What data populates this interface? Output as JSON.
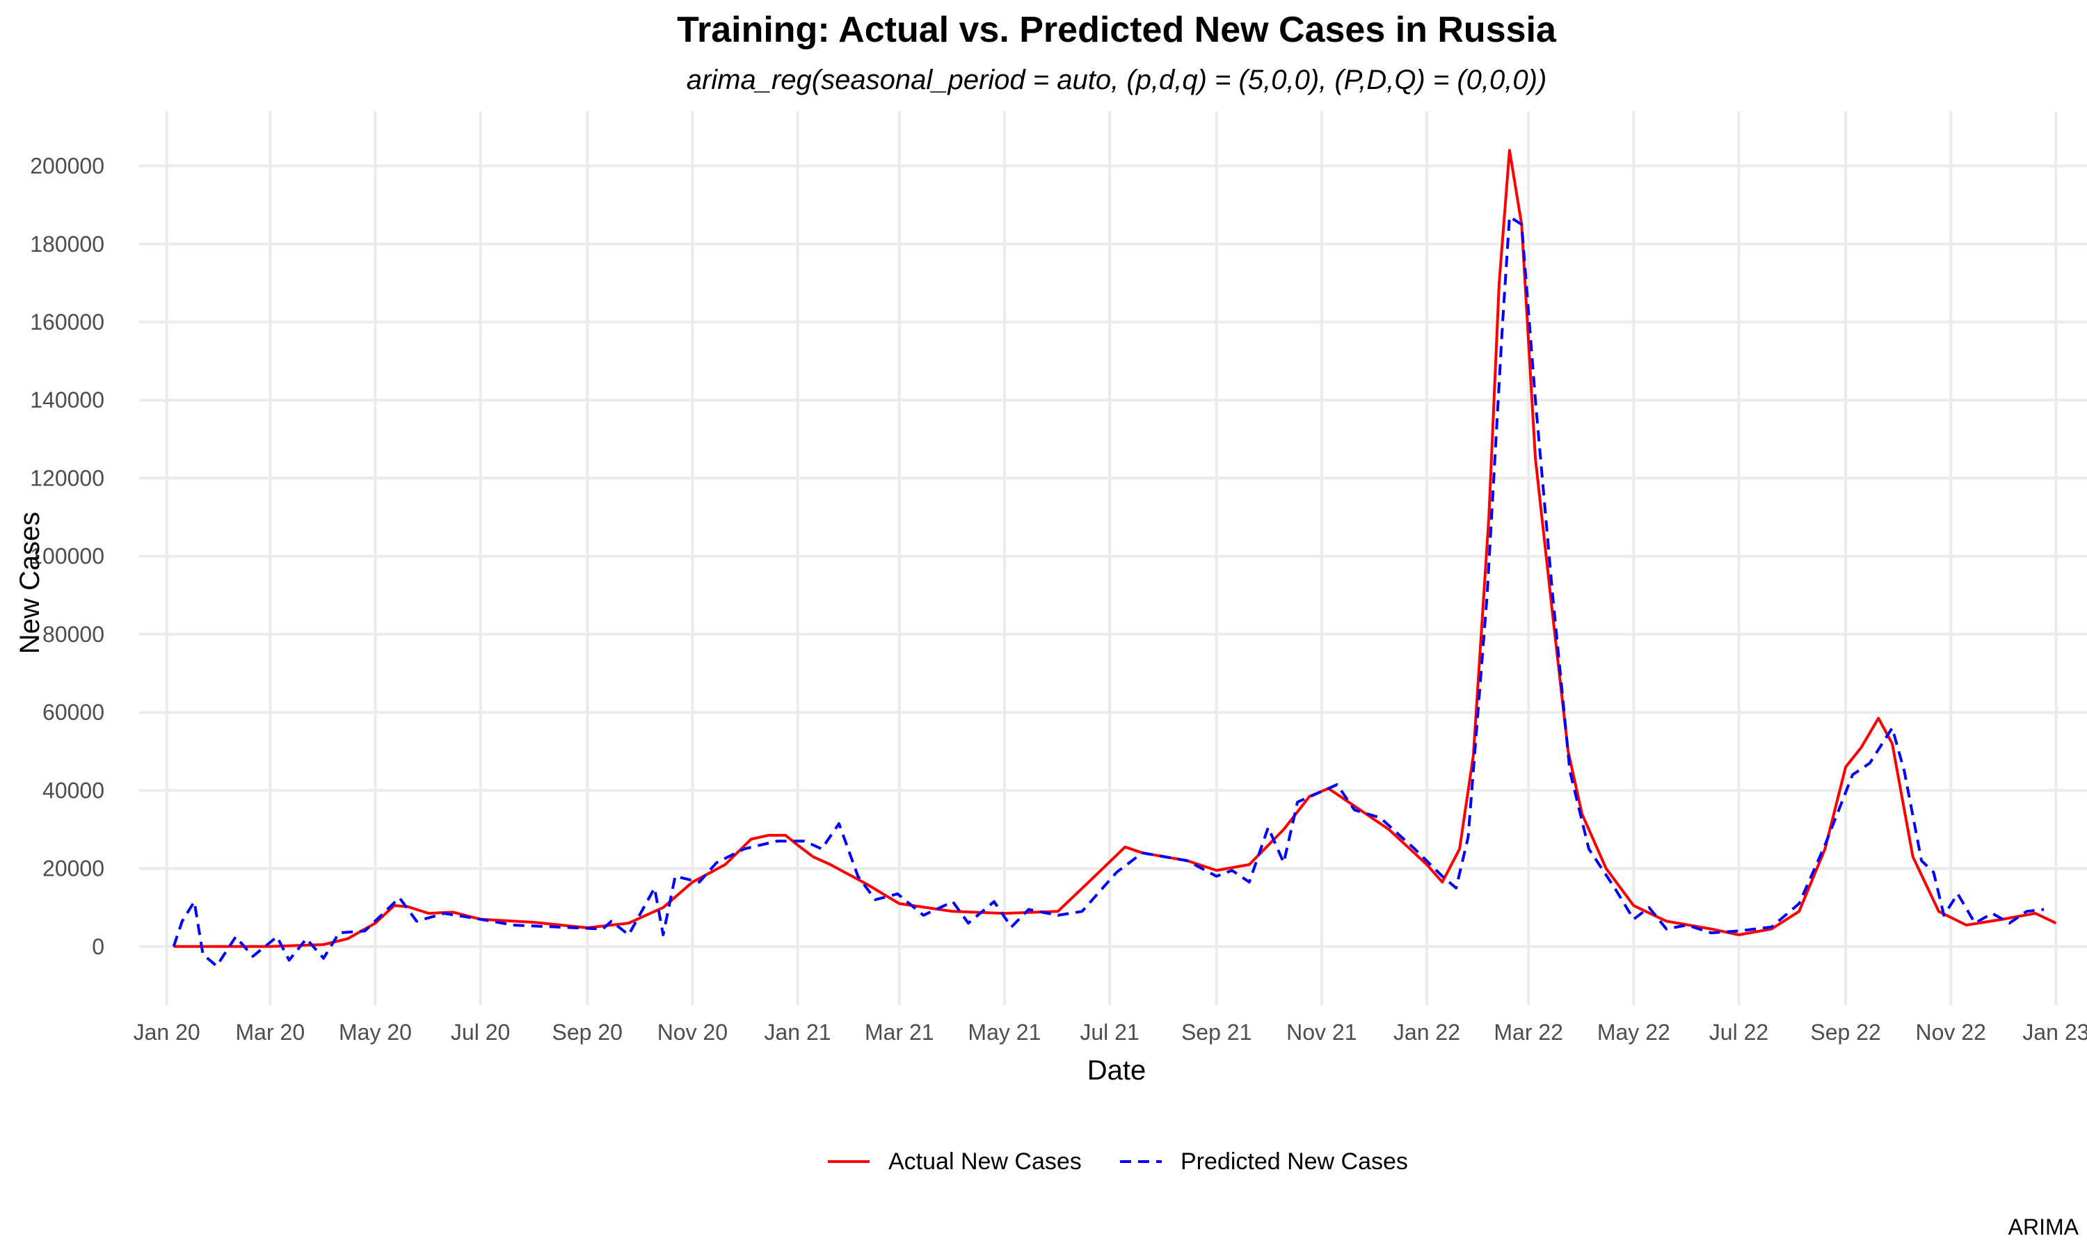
{
  "chart_data": {
    "type": "line",
    "title": "Training: Actual vs. Predicted New Cases in Russia",
    "subtitle": "arima_reg(seasonal_period = auto, (p,d,q) = (5,0,0), (P,D,Q) = (0,0,0))",
    "xlabel": "Date",
    "ylabel": "New Cases",
    "caption": "ARIMA",
    "x_ticks": [
      {
        "date": "2020-01-01",
        "label": "Jan 20"
      },
      {
        "date": "2020-03-01",
        "label": "Mar 20"
      },
      {
        "date": "2020-05-01",
        "label": "May 20"
      },
      {
        "date": "2020-07-01",
        "label": "Jul 20"
      },
      {
        "date": "2020-09-01",
        "label": "Sep 20"
      },
      {
        "date": "2020-11-01",
        "label": "Nov 20"
      },
      {
        "date": "2021-01-01",
        "label": "Jan 21"
      },
      {
        "date": "2021-03-01",
        "label": "Mar 21"
      },
      {
        "date": "2021-05-01",
        "label": "May 21"
      },
      {
        "date": "2021-07-01",
        "label": "Jul 21"
      },
      {
        "date": "2021-09-01",
        "label": "Sep 21"
      },
      {
        "date": "2021-11-01",
        "label": "Nov 21"
      },
      {
        "date": "2022-01-01",
        "label": "Jan 22"
      },
      {
        "date": "2022-03-01",
        "label": "Mar 22"
      },
      {
        "date": "2022-05-01",
        "label": "May 22"
      },
      {
        "date": "2022-07-01",
        "label": "Jul 22"
      },
      {
        "date": "2022-09-01",
        "label": "Sep 22"
      },
      {
        "date": "2022-11-01",
        "label": "Nov 22"
      },
      {
        "date": "2023-01-01",
        "label": "Jan 23"
      }
    ],
    "y_ticks": [
      0,
      20000,
      40000,
      60000,
      80000,
      100000,
      120000,
      140000,
      160000,
      180000,
      200000
    ],
    "xlim": [
      "2019-12-16",
      "2023-01-19"
    ],
    "ylim": [
      -15000,
      214000
    ],
    "grid": true,
    "legend_position": "bottom",
    "series": [
      {
        "name": "Actual New Cases",
        "color": "#ff0000",
        "dash": "solid",
        "points": [
          [
            "2020-01-05",
            0
          ],
          [
            "2020-02-01",
            0
          ],
          [
            "2020-03-01",
            0
          ],
          [
            "2020-04-01",
            500
          ],
          [
            "2020-04-15",
            2000
          ],
          [
            "2020-05-01",
            6000
          ],
          [
            "2020-05-12",
            10500
          ],
          [
            "2020-05-20",
            10200
          ],
          [
            "2020-06-01",
            8500
          ],
          [
            "2020-06-15",
            8800
          ],
          [
            "2020-07-01",
            7000
          ],
          [
            "2020-08-01",
            6200
          ],
          [
            "2020-09-01",
            4800
          ],
          [
            "2020-09-25",
            6000
          ],
          [
            "2020-10-15",
            10000
          ],
          [
            "2020-11-01",
            16500
          ],
          [
            "2020-11-20",
            21000
          ],
          [
            "2020-12-05",
            27500
          ],
          [
            "2020-12-15",
            28500
          ],
          [
            "2020-12-25",
            28500
          ],
          [
            "2021-01-01",
            26000
          ],
          [
            "2021-01-10",
            23000
          ],
          [
            "2021-01-20",
            21000
          ],
          [
            "2021-02-10",
            16000
          ],
          [
            "2021-03-01",
            11000
          ],
          [
            "2021-04-01",
            9000
          ],
          [
            "2021-05-01",
            8500
          ],
          [
            "2021-06-01",
            9000
          ],
          [
            "2021-06-20",
            17000
          ],
          [
            "2021-07-10",
            25500
          ],
          [
            "2021-07-20",
            24000
          ],
          [
            "2021-08-15",
            22000
          ],
          [
            "2021-09-01",
            19500
          ],
          [
            "2021-09-20",
            21000
          ],
          [
            "2021-10-10",
            30000
          ],
          [
            "2021-10-25",
            38500
          ],
          [
            "2021-11-05",
            40500
          ],
          [
            "2021-11-20",
            36000
          ],
          [
            "2021-12-10",
            30000
          ],
          [
            "2022-01-01",
            21000
          ],
          [
            "2022-01-10",
            16500
          ],
          [
            "2022-01-20",
            25000
          ],
          [
            "2022-01-28",
            49000
          ],
          [
            "2022-02-06",
            110000
          ],
          [
            "2022-02-12",
            170000
          ],
          [
            "2022-02-18",
            204000
          ],
          [
            "2022-02-25",
            185000
          ],
          [
            "2022-03-05",
            125000
          ],
          [
            "2022-03-15",
            85000
          ],
          [
            "2022-03-24",
            50000
          ],
          [
            "2022-04-01",
            34000
          ],
          [
            "2022-04-15",
            20000
          ],
          [
            "2022-05-01",
            10500
          ],
          [
            "2022-05-20",
            6500
          ],
          [
            "2022-06-15",
            4500
          ],
          [
            "2022-07-01",
            3000
          ],
          [
            "2022-07-20",
            4500
          ],
          [
            "2022-08-05",
            9000
          ],
          [
            "2022-08-20",
            25000
          ],
          [
            "2022-09-01",
            46000
          ],
          [
            "2022-09-10",
            51000
          ],
          [
            "2022-09-20",
            58500
          ],
          [
            "2022-09-28",
            52000
          ],
          [
            "2022-10-10",
            23000
          ],
          [
            "2022-10-25",
            9000
          ],
          [
            "2022-11-10",
            5500
          ],
          [
            "2022-12-01",
            7000
          ],
          [
            "2022-12-20",
            8500
          ],
          [
            "2023-01-01",
            6000
          ]
        ]
      },
      {
        "name": "Predicted New Cases",
        "color": "#0000ff",
        "dash": "dashed",
        "points": [
          [
            "2020-01-05",
            0
          ],
          [
            "2020-01-10",
            6500
          ],
          [
            "2020-01-17",
            11500
          ],
          [
            "2020-01-22",
            -2000
          ],
          [
            "2020-01-30",
            -5000
          ],
          [
            "2020-02-10",
            2500
          ],
          [
            "2020-02-20",
            -2500
          ],
          [
            "2020-03-05",
            2500
          ],
          [
            "2020-03-12",
            -3500
          ],
          [
            "2020-03-22",
            2000
          ],
          [
            "2020-04-01",
            -3000
          ],
          [
            "2020-04-10",
            3500
          ],
          [
            "2020-04-25",
            4000
          ],
          [
            "2020-05-15",
            12500
          ],
          [
            "2020-05-25",
            6500
          ],
          [
            "2020-06-10",
            8500
          ],
          [
            "2020-07-01",
            7000
          ],
          [
            "2020-07-20",
            5500
          ],
          [
            "2020-08-15",
            5000
          ],
          [
            "2020-09-10",
            4500
          ],
          [
            "2020-09-15",
            6500
          ],
          [
            "2020-09-25",
            3000
          ],
          [
            "2020-10-10",
            15000
          ],
          [
            "2020-10-15",
            3000
          ],
          [
            "2020-10-22",
            18000
          ],
          [
            "2020-11-05",
            16500
          ],
          [
            "2020-11-15",
            21500
          ],
          [
            "2020-12-01",
            25000
          ],
          [
            "2020-12-20",
            27000
          ],
          [
            "2021-01-05",
            27000
          ],
          [
            "2021-01-15",
            25000
          ],
          [
            "2021-01-25",
            31500
          ],
          [
            "2021-02-05",
            18000
          ],
          [
            "2021-02-15",
            12000
          ],
          [
            "2021-02-28",
            13500
          ],
          [
            "2021-03-15",
            8000
          ],
          [
            "2021-04-01",
            11500
          ],
          [
            "2021-04-10",
            6000
          ],
          [
            "2021-04-25",
            11500
          ],
          [
            "2021-05-05",
            5000
          ],
          [
            "2021-05-15",
            9500
          ],
          [
            "2021-06-01",
            8000
          ],
          [
            "2021-06-15",
            9000
          ],
          [
            "2021-07-05",
            19000
          ],
          [
            "2021-07-20",
            24000
          ],
          [
            "2021-08-15",
            22000
          ],
          [
            "2021-09-01",
            18000
          ],
          [
            "2021-09-10",
            19500
          ],
          [
            "2021-09-20",
            16500
          ],
          [
            "2021-10-01",
            30500
          ],
          [
            "2021-10-10",
            21500
          ],
          [
            "2021-10-18",
            37000
          ],
          [
            "2021-11-10",
            41500
          ],
          [
            "2021-11-20",
            35000
          ],
          [
            "2021-12-05",
            33000
          ],
          [
            "2021-12-25",
            25000
          ],
          [
            "2022-01-10",
            18000
          ],
          [
            "2022-01-18",
            15000
          ],
          [
            "2022-01-25",
            28000
          ],
          [
            "2022-02-05",
            90000
          ],
          [
            "2022-02-14",
            160000
          ],
          [
            "2022-02-18",
            187000
          ],
          [
            "2022-02-25",
            185000
          ],
          [
            "2022-03-05",
            140000
          ],
          [
            "2022-03-15",
            90000
          ],
          [
            "2022-03-25",
            45000
          ],
          [
            "2022-04-05",
            25000
          ],
          [
            "2022-04-20",
            15000
          ],
          [
            "2022-05-01",
            7000
          ],
          [
            "2022-05-10",
            10000
          ],
          [
            "2022-05-20",
            4500
          ],
          [
            "2022-06-01",
            5500
          ],
          [
            "2022-06-15",
            3500
          ],
          [
            "2022-07-01",
            4000
          ],
          [
            "2022-07-20",
            5000
          ],
          [
            "2022-08-05",
            11000
          ],
          [
            "2022-08-20",
            26000
          ],
          [
            "2022-09-05",
            44000
          ],
          [
            "2022-09-15",
            47000
          ],
          [
            "2022-09-28",
            56000
          ],
          [
            "2022-10-05",
            45000
          ],
          [
            "2022-10-15",
            22000
          ],
          [
            "2022-10-22",
            19000
          ],
          [
            "2022-10-28",
            8000
          ],
          [
            "2022-11-05",
            13500
          ],
          [
            "2022-11-15",
            6000
          ],
          [
            "2022-11-25",
            8500
          ],
          [
            "2022-12-05",
            6000
          ],
          [
            "2022-12-15",
            9000
          ],
          [
            "2022-12-25",
            9500
          ]
        ]
      }
    ]
  }
}
